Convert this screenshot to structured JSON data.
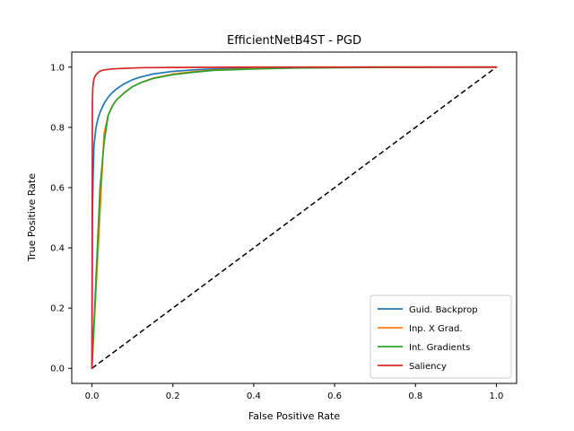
{
  "chart_data": {
    "type": "line",
    "title": "EfficientNetB4ST - PGD",
    "xlabel": "False Positive Rate",
    "ylabel": "True Positive Rate",
    "xlim": [
      -0.05,
      1.05
    ],
    "ylim": [
      -0.05,
      1.05
    ],
    "xticks": [
      0.0,
      0.2,
      0.4,
      0.6,
      0.8,
      1.0
    ],
    "yticks": [
      0.0,
      0.2,
      0.4,
      0.6,
      0.8,
      1.0
    ],
    "xtick_labels": [
      "0.0",
      "0.2",
      "0.4",
      "0.6",
      "0.8",
      "1.0"
    ],
    "ytick_labels": [
      "0.0",
      "0.2",
      "0.4",
      "0.6",
      "0.8",
      "1.0"
    ],
    "legend_position": "lower-right",
    "series": [
      {
        "name": "Guid. Backprop",
        "color": "#1f77b4",
        "x": [
          0.0,
          0.001,
          0.003,
          0.005,
          0.01,
          0.015,
          0.02,
          0.03,
          0.04,
          0.05,
          0.06,
          0.08,
          0.1,
          0.12,
          0.15,
          0.2,
          0.25,
          0.3,
          0.4,
          0.5,
          0.7,
          1.0
        ],
        "y": [
          0.0,
          0.5,
          0.65,
          0.74,
          0.8,
          0.83,
          0.85,
          0.88,
          0.9,
          0.915,
          0.927,
          0.945,
          0.958,
          0.967,
          0.977,
          0.986,
          0.991,
          0.994,
          0.997,
          0.999,
          1.0,
          1.0
        ]
      },
      {
        "name": "Inp. X Grad.",
        "color": "#ff7f0e",
        "x": [
          0.0,
          0.03,
          0.035,
          0.04,
          0.05,
          0.06,
          0.08,
          0.1,
          0.12,
          0.15,
          0.2,
          0.25,
          0.3,
          0.4,
          0.5,
          0.7,
          1.0
        ],
        "y": [
          0.0,
          0.78,
          0.81,
          0.84,
          0.87,
          0.89,
          0.915,
          0.935,
          0.948,
          0.963,
          0.977,
          0.985,
          0.99,
          0.995,
          0.998,
          1.0,
          1.0
        ]
      },
      {
        "name": "Int. Gradients",
        "color": "#2ca02c",
        "x": [
          0.0,
          0.02,
          0.03,
          0.04,
          0.05,
          0.06,
          0.08,
          0.1,
          0.12,
          0.15,
          0.2,
          0.25,
          0.3,
          0.4,
          0.5,
          0.7,
          1.0
        ],
        "y": [
          0.0,
          0.6,
          0.75,
          0.84,
          0.87,
          0.89,
          0.915,
          0.935,
          0.948,
          0.962,
          0.975,
          0.983,
          0.989,
          0.994,
          0.997,
          0.999,
          1.0
        ]
      },
      {
        "name": "Saliency",
        "color": "#d62728",
        "x": [
          0.0,
          0.001,
          0.002,
          0.004,
          0.006,
          0.01,
          0.015,
          0.02,
          0.03,
          0.05,
          0.08,
          0.12,
          0.2,
          0.4,
          1.0
        ],
        "y": [
          0.0,
          0.88,
          0.93,
          0.955,
          0.965,
          0.975,
          0.982,
          0.987,
          0.991,
          0.994,
          0.996,
          0.998,
          0.999,
          1.0,
          1.0
        ]
      }
    ],
    "reference_line": {
      "style": "dashed",
      "color": "#000000",
      "x": [
        0.0,
        1.0
      ],
      "y": [
        0.0,
        1.0
      ]
    }
  }
}
